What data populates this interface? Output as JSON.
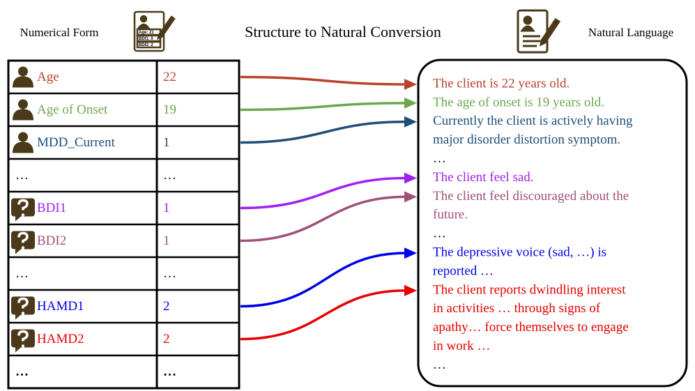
{
  "header": {
    "left_label": "Numerical Form",
    "title": "Structure to Natural Conversion",
    "right_label": "Natural Language",
    "form_icon_lines": [
      "Age:  21",
      "BDI1:  0",
      "BDI2:  2"
    ]
  },
  "table": {
    "rows": [
      {
        "label": "Age",
        "value": "22",
        "icon": "person",
        "color": "#b8432b"
      },
      {
        "label": "Age of Onset",
        "value": "19",
        "icon": "person",
        "color": "#6aa84f"
      },
      {
        "label": "MDD_Current",
        "value": "1",
        "icon": "person",
        "color": "#1f4e79"
      },
      {
        "label": "…",
        "value": "…",
        "color": "#000000"
      },
      {
        "label": "BDI1",
        "value": "1",
        "icon": "question",
        "color": "#a020f0"
      },
      {
        "label": "BDI2",
        "value": "1",
        "icon": "question",
        "color": "#a0507a"
      },
      {
        "label": "…",
        "value": "…",
        "color": "#000000"
      },
      {
        "label": "HAMD1",
        "value": "2",
        "icon": "question",
        "color": "#0000e6"
      },
      {
        "label": "HAMD2",
        "value": "2",
        "icon": "question",
        "color": "#e60000"
      },
      {
        "label": "…",
        "value": "…",
        "color": "#000000",
        "bold": true
      }
    ]
  },
  "sentences": [
    {
      "color": "#b8432b",
      "lines": [
        "The client is 22 years old."
      ]
    },
    {
      "color": "#6aa84f",
      "lines": [
        "The age of onset is 19 years old."
      ]
    },
    {
      "color": "#1f4e79",
      "lines": [
        "Currently the client is actively having",
        "major disorder distortion symptom."
      ]
    },
    {
      "color": "#000000",
      "lines": [
        "…"
      ]
    },
    {
      "color": "#a020f0",
      "lines": [
        "The client feel sad."
      ]
    },
    {
      "color": "#a0507a",
      "lines": [
        "The client feel discouraged about the",
        "future."
      ]
    },
    {
      "color": "#000000",
      "lines": [
        "…"
      ]
    },
    {
      "color": "#0000e6",
      "lines": [
        "The depressive voice (sad, …) is",
        "reported …"
      ]
    },
    {
      "color": "#e60000",
      "lines": [
        "The client reports dwindling interest",
        "in activities … through signs of",
        "apathy… force themselves to engage",
        "in work …"
      ]
    },
    {
      "color": "#000000",
      "lines": [
        "…"
      ]
    }
  ]
}
